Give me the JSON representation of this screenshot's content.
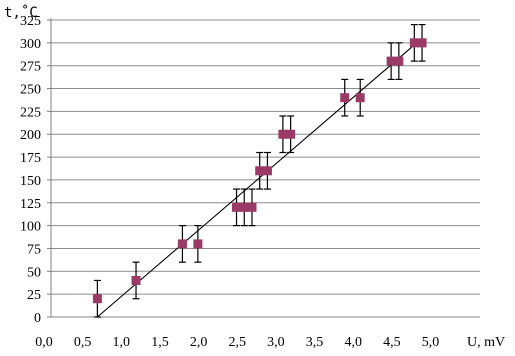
{
  "chart_data": {
    "type": "scatter",
    "title": "",
    "xlabel": "U, mV",
    "ylabel": "t,˚C",
    "xlim": [
      0,
      5
    ],
    "ylim": [
      0,
      325
    ],
    "x_ticks": [
      "0,0",
      "0,5",
      "1,0",
      "1,5",
      "2,0",
      "2,5",
      "3,0",
      "3,5",
      "4,0",
      "4,5",
      "5,0"
    ],
    "y_ticks": [
      "0",
      "25",
      "50",
      "75",
      "100",
      "125",
      "150",
      "175",
      "200",
      "225",
      "250",
      "275",
      "300",
      "325"
    ],
    "grid": "horizontal",
    "marker_color": "#9b3a66",
    "line_color": "#000000",
    "points": [
      {
        "x": 0.6,
        "y": 20
      },
      {
        "x": 1.1,
        "y": 40
      },
      {
        "x": 1.7,
        "y": 80
      },
      {
        "x": 1.9,
        "y": 80
      },
      {
        "x": 2.4,
        "y": 120
      },
      {
        "x": 2.5,
        "y": 120
      },
      {
        "x": 2.6,
        "y": 120
      },
      {
        "x": 2.7,
        "y": 160
      },
      {
        "x": 2.8,
        "y": 160
      },
      {
        "x": 3.0,
        "y": 200
      },
      {
        "x": 3.1,
        "y": 200
      },
      {
        "x": 3.8,
        "y": 240
      },
      {
        "x": 4.0,
        "y": 240
      },
      {
        "x": 4.4,
        "y": 280
      },
      {
        "x": 4.5,
        "y": 280
      },
      {
        "x": 4.7,
        "y": 300
      },
      {
        "x": 4.8,
        "y": 300
      }
    ],
    "error_y": 20,
    "trendline": {
      "x": [
        0.6,
        4.8
      ],
      "y": [
        0,
        305
      ]
    }
  }
}
